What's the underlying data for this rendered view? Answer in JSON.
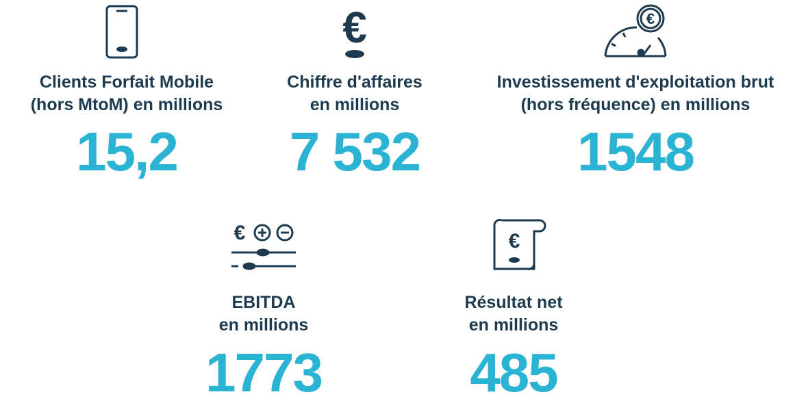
{
  "items": [
    {
      "label": [
        "Clients Forfait Mobile",
        "(hors MtoM) en millions"
      ],
      "value": "15,2"
    },
    {
      "label": [
        "Chiffre d'affaires",
        "en millions"
      ],
      "value": "7 532"
    },
    {
      "label": [
        "Investissement d'exploitation brut",
        "(hors fréquence) en millions"
      ],
      "value": "1548"
    },
    {
      "label": [
        "EBITDA",
        "en millions"
      ],
      "value": "1773"
    },
    {
      "label": [
        "Résultat net",
        "en millions"
      ],
      "value": "485"
    }
  ]
}
